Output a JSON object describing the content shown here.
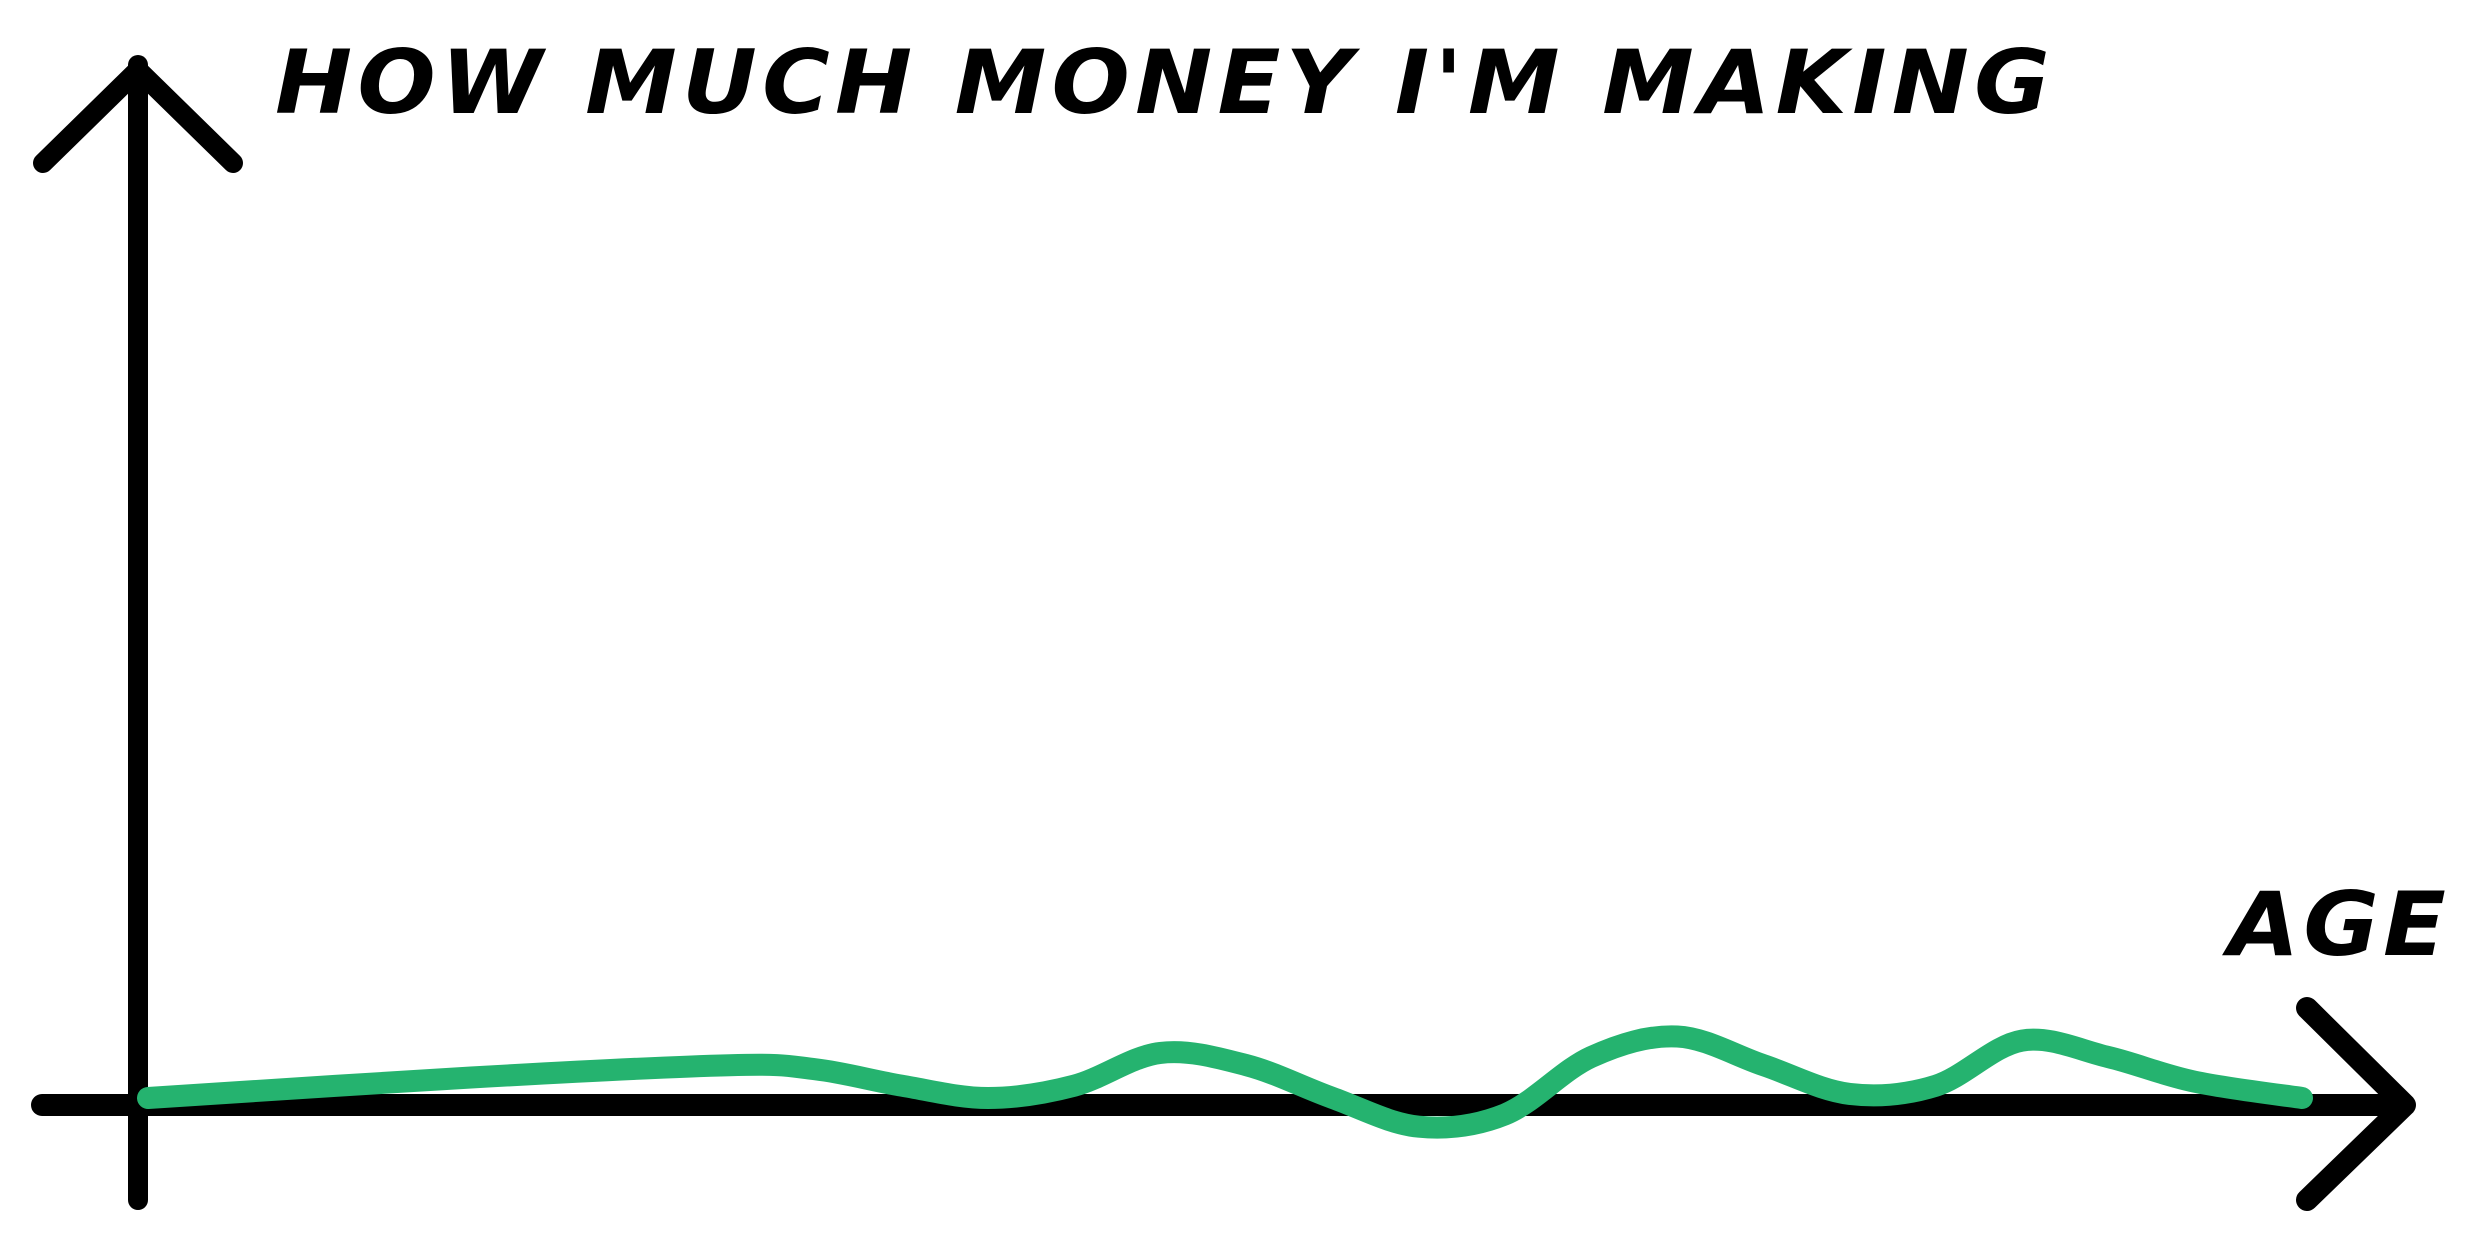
{
  "chart_data": {
    "type": "line",
    "title": "HOW MUCH MONEY I'M MAKING",
    "xlabel": "AGE",
    "ylabel": "",
    "xlim": [
      0,
      100
    ],
    "ylim": [
      -10,
      100
    ],
    "grid": false,
    "legend": "none",
    "series": [
      {
        "color": "#25b36f",
        "points": [
          [
            0,
            0
          ],
          [
            15,
            2.5
          ],
          [
            27,
            4
          ],
          [
            31,
            3.5
          ],
          [
            35,
            1.5
          ],
          [
            39,
            0
          ],
          [
            43,
            1.5
          ],
          [
            47,
            5.5
          ],
          [
            51,
            4
          ],
          [
            55,
            0
          ],
          [
            59,
            -3.5
          ],
          [
            63,
            -2
          ],
          [
            67,
            5
          ],
          [
            71,
            7.5
          ],
          [
            75,
            4
          ],
          [
            79,
            0.5
          ],
          [
            83,
            1.5
          ],
          [
            87,
            7
          ],
          [
            91,
            5
          ],
          [
            95,
            2
          ],
          [
            100,
            0
          ]
        ]
      }
    ],
    "colors": {
      "axis": "#000000",
      "line": "#25b36f",
      "background": "#ffffff"
    }
  }
}
